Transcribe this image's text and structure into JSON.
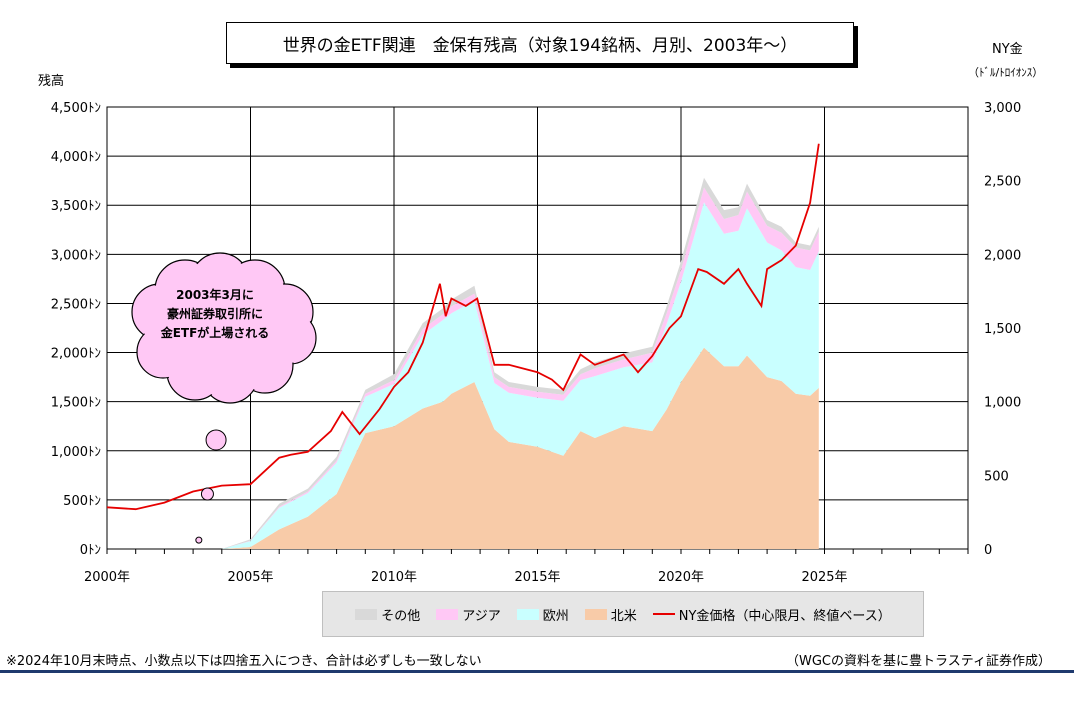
{
  "title": "世界の金ETF関連　金保有残高（対象194銘柄、月別、2003年～）",
  "left_axis_label": "残高",
  "right_axis_label_line1": "NY金",
  "right_axis_label_line2": "（ﾄﾞﾙ/ﾄﾛｲｵﾝｽ）",
  "callout": [
    "2003年3月に",
    "豪州証券取引所に",
    "金ETFが上場される"
  ],
  "footnote_left": "※2024年10月末時点、小数点以下は四捨五入につき、合計は必ずしも一致しない",
  "footnote_right": "（WGCの資料を基に豊トラスティ証券作成）",
  "legend": [
    {
      "label": "その他",
      "color": "#d9d9d9",
      "kind": "area"
    },
    {
      "label": "アジア",
      "color": "#ffc8f5",
      "kind": "area"
    },
    {
      "label": "欧州",
      "color": "#c9ffff",
      "kind": "area"
    },
    {
      "label": "北米",
      "color": "#f8cba8",
      "kind": "area"
    },
    {
      "label": "NY金価格（中心限月、終値ベース）",
      "color": "#e60000",
      "kind": "line"
    }
  ],
  "chart_data": {
    "type": "area",
    "stacked": true,
    "xlim": [
      2000,
      2030
    ],
    "x_ticks": [
      2000,
      2005,
      2010,
      2015,
      2020,
      2025
    ],
    "x_tick_labels": [
      "2000年",
      "2005年",
      "2010年",
      "2015年",
      "2020年",
      "2025年"
    ],
    "left_ylim": [
      0,
      4500
    ],
    "left_y_ticks": [
      0,
      500,
      1000,
      1500,
      2000,
      2500,
      3000,
      3500,
      4000,
      4500
    ],
    "left_y_tick_labels": [
      "0ﾄﾝ",
      "500ﾄﾝ",
      "1,000ﾄﾝ",
      "1,500ﾄﾝ",
      "2,000ﾄﾝ",
      "2,500ﾄﾝ",
      "3,000ﾄﾝ",
      "3,500ﾄﾝ",
      "4,000ﾄﾝ",
      "4,500ﾄﾝ"
    ],
    "right_ylim": [
      0,
      3000
    ],
    "right_y_ticks": [
      0,
      500,
      1000,
      1500,
      2000,
      2500,
      3000
    ],
    "right_y_tick_labels": [
      "0",
      "500",
      "1,000",
      "1,500",
      "2,000",
      "2,500",
      "3,000"
    ],
    "grid": "horizontal",
    "x": [
      2003.2,
      2004.0,
      2005.0,
      2006.0,
      2007.0,
      2008.0,
      2009.0,
      2010.0,
      2011.0,
      2011.7,
      2012.0,
      2012.8,
      2013.5,
      2014.0,
      2015.0,
      2015.9,
      2016.5,
      2017.0,
      2018.0,
      2019.0,
      2019.5,
      2020.0,
      2020.8,
      2021.5,
      2022.0,
      2022.3,
      2023.0,
      2023.5,
      2024.0,
      2024.5,
      2024.8
    ],
    "series": [
      {
        "name": "北米",
        "values": [
          0,
          0,
          20,
          200,
          330,
          560,
          1180,
          1250,
          1430,
          1500,
          1580,
          1700,
          1220,
          1090,
          1040,
          950,
          1200,
          1130,
          1250,
          1200,
          1420,
          1700,
          2050,
          1860,
          1860,
          1970,
          1750,
          1710,
          1580,
          1560,
          1640
        ]
      },
      {
        "name": "欧州",
        "values": [
          0,
          0,
          60,
          220,
          240,
          320,
          370,
          430,
          750,
          830,
          820,
          830,
          470,
          500,
          500,
          560,
          520,
          630,
          600,
          700,
          870,
          1020,
          1480,
          1350,
          1380,
          1500,
          1370,
          1330,
          1290,
          1280,
          1390
        ]
      },
      {
        "name": "アジア",
        "values": [
          0,
          0,
          5,
          10,
          15,
          20,
          30,
          40,
          60,
          60,
          70,
          70,
          60,
          60,
          60,
          60,
          60,
          80,
          80,
          100,
          110,
          120,
          150,
          150,
          160,
          170,
          170,
          180,
          200,
          200,
          200
        ]
      },
      {
        "name": "その他",
        "values": [
          0,
          0,
          15,
          30,
          30,
          40,
          40,
          60,
          60,
          60,
          70,
          80,
          50,
          50,
          50,
          50,
          50,
          60,
          60,
          60,
          70,
          90,
          100,
          90,
          80,
          80,
          60,
          60,
          50,
          50,
          50
        ]
      }
    ],
    "line_series": {
      "name": "NY金価格（中心限月、終値ベース）",
      "axis": "right",
      "x": [
        2000.0,
        2001.0,
        2002.0,
        2003.0,
        2004.0,
        2005.0,
        2006.0,
        2006.4,
        2007.0,
        2007.8,
        2008.2,
        2008.8,
        2009.5,
        2010.0,
        2010.5,
        2011.0,
        2011.6,
        2011.8,
        2012.0,
        2012.5,
        2012.9,
        2013.3,
        2013.5,
        2014.0,
        2015.0,
        2015.5,
        2015.9,
        2016.5,
        2017.0,
        2018.0,
        2018.5,
        2019.0,
        2019.6,
        2020.0,
        2020.6,
        2020.9,
        2021.5,
        2022.0,
        2022.3,
        2022.8,
        2023.0,
        2023.5,
        2024.0,
        2024.5,
        2024.8
      ],
      "y": [
        283,
        270,
        315,
        390,
        430,
        440,
        620,
        640,
        660,
        800,
        930,
        780,
        950,
        1100,
        1200,
        1400,
        1800,
        1580,
        1700,
        1650,
        1700,
        1400,
        1250,
        1250,
        1200,
        1150,
        1080,
        1320,
        1250,
        1320,
        1200,
        1310,
        1500,
        1580,
        1900,
        1880,
        1800,
        1900,
        1800,
        1650,
        1900,
        1960,
        2060,
        2350,
        2750
      ]
    },
    "scatter_points": [
      {
        "x": 2003.2,
        "y": 90
      },
      {
        "x": 2003.5,
        "y": 560
      },
      {
        "x": 2003.8,
        "y": 1110
      }
    ]
  }
}
